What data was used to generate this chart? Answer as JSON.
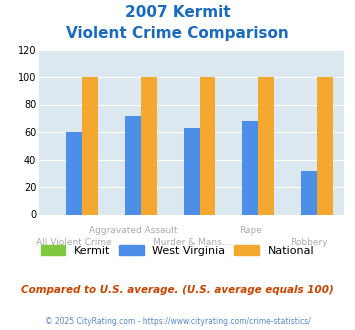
{
  "title_line1": "2007 Kermit",
  "title_line2": "Violent Crime Comparison",
  "categories": [
    "All Violent Crime",
    "Aggravated Assault",
    "Murder & Mans...",
    "Rape",
    "Robbery"
  ],
  "top_labels": [
    "",
    "Aggravated Assault",
    "",
    "Rape",
    ""
  ],
  "bottom_labels": [
    "All Violent Crime",
    "",
    "Murder & Mans...",
    "",
    "Robbery"
  ],
  "kermit": [
    0,
    0,
    0,
    0,
    0
  ],
  "west_virginia": [
    60,
    72,
    63,
    68,
    32
  ],
  "national": [
    100,
    100,
    100,
    100,
    100
  ],
  "bar_color_kermit": "#80c840",
  "bar_color_wv": "#4d8fe8",
  "bar_color_national": "#f5a830",
  "ylim": [
    0,
    120
  ],
  "yticks": [
    0,
    20,
    40,
    60,
    80,
    100,
    120
  ],
  "title_color": "#1a6bbf",
  "plot_bg_color": "#dce8ef",
  "footnote": "Compared to U.S. average. (U.S. average equals 100)",
  "copyright": "© 2025 CityRating.com - https://www.cityrating.com/crime-statistics/",
  "legend_labels": [
    "Kermit",
    "West Virginia",
    "National"
  ],
  "footnote_color": "#c84400",
  "copyright_color": "#5588cc",
  "label_color": "#aaaaaa"
}
